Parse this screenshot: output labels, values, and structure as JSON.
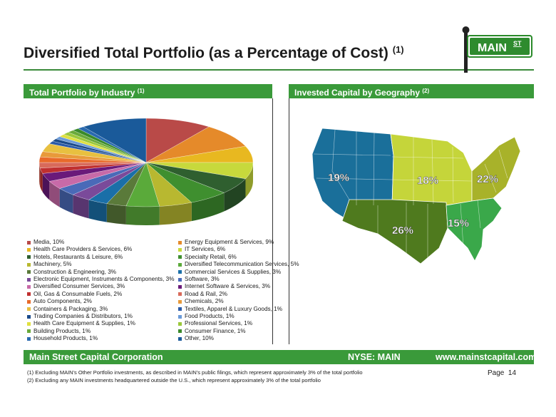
{
  "title": {
    "text": "Diversified Total Portfolio (as a Percentage of Cost)",
    "note": "(1)"
  },
  "logo": {
    "main": "MAIN",
    "st": "ST"
  },
  "left_panel": {
    "heading": "Total Portfolio by Industry",
    "note": "(1)"
  },
  "right_panel": {
    "heading": "Invested Capital by Geography",
    "note": "(2)"
  },
  "chart_data": [
    {
      "type": "pie",
      "slices": [
        {
          "label": "Media, 10%",
          "value": 10,
          "color": "#b94a48"
        },
        {
          "label": "Energy Equipment & Services, 9%",
          "value": 9,
          "color": "#e58a2a"
        },
        {
          "label": "Health Care Providers & Services, 6%",
          "value": 6,
          "color": "#e8b820"
        },
        {
          "label": "IT Services, 6%",
          "value": 6,
          "color": "#c7d93c"
        },
        {
          "label": "Hotels, Restaurants & Leisure, 6%",
          "value": 6,
          "color": "#2f5f2f"
        },
        {
          "label": "Specialty Retail, 6%",
          "value": 6,
          "color": "#3f8f2f"
        },
        {
          "label": "Machinery, 5%",
          "value": 5,
          "color": "#b8b830"
        },
        {
          "label": "Diversified Telecommunication Services, 5%",
          "value": 5,
          "color": "#5aaa3a"
        },
        {
          "label": "Construction & Engineering, 3%",
          "value": 3,
          "color": "#5a7a3a"
        },
        {
          "label": "Commercial Services & Supplies, 3%",
          "value": 3,
          "color": "#1a6fa8"
        },
        {
          "label": "Electronic Equipment, Instruments & Components, 3%",
          "value": 3,
          "color": "#7a4a9a"
        },
        {
          "label": "Software, 3%",
          "value": 3,
          "color": "#4a6ab8"
        },
        {
          "label": "Diversified Consumer Services, 3%",
          "value": 3,
          "color": "#c86aa8"
        },
        {
          "label": "Internet Software & Services, 3%",
          "value": 3,
          "color": "#6a1a7a"
        },
        {
          "label": "Oil, Gas & Consumable Fuels, 2%",
          "value": 2,
          "color": "#c03030"
        },
        {
          "label": "Road & Rail, 2%",
          "value": 2,
          "color": "#d86a5a"
        },
        {
          "label": "Auto Components, 2%",
          "value": 2,
          "color": "#e86a2a"
        },
        {
          "label": "Chemicals, 2%",
          "value": 2,
          "color": "#e89a3a"
        },
        {
          "label": "Containers & Packaging, 3%",
          "value": 3,
          "color": "#e8c040"
        },
        {
          "label": "Textiles, Apparel & Luxury Goods, 1%",
          "value": 1,
          "color": "#2a5aa8"
        },
        {
          "label": "Trading Companies & Distributors, 1%",
          "value": 1,
          "color": "#1a4a8a"
        },
        {
          "label": "Food Products, 1%",
          "value": 1,
          "color": "#6a9ad8"
        },
        {
          "label": "Health Care Equipment & Supplies, 1%",
          "value": 1,
          "color": "#e0e040"
        },
        {
          "label": "Professional Services, 1%",
          "value": 1,
          "color": "#9ac83a"
        },
        {
          "label": "Building Products, 1%",
          "value": 1,
          "color": "#6aaa3a"
        },
        {
          "label": "Consumer Finance, 1%",
          "value": 1,
          "color": "#3a8a2a"
        },
        {
          "label": "Household Products, 1%",
          "value": 1,
          "color": "#2a6ab0"
        },
        {
          "label": "Other, 10%",
          "value": 10,
          "color": "#1a5a9a"
        }
      ]
    }
  ],
  "map": {
    "regions": [
      {
        "label": "19%",
        "color": "#1a6f9a"
      },
      {
        "label": "18%",
        "color": "#c5d53a"
      },
      {
        "label": "22%",
        "color": "#a8b22a"
      },
      {
        "label": "26%",
        "color": "#4f7a1e"
      },
      {
        "label": "15%",
        "color": "#3aa84a"
      }
    ]
  },
  "footer": {
    "company": "Main Street Capital Corporation",
    "ticker": "NYSE: MAIN",
    "url": "www.mainstcapital.com"
  },
  "footnotes": [
    "(1)  Excluding MAIN's Other Portfolio investments, as described in MAIN's public filings, which represent approximately 3% of the total portfolio",
    "(2)  Excluding any MAIN investments headquartered outside the U.S., which represent approximately 3% of the total portfolio"
  ],
  "page": {
    "label": "Page",
    "number": "14"
  }
}
